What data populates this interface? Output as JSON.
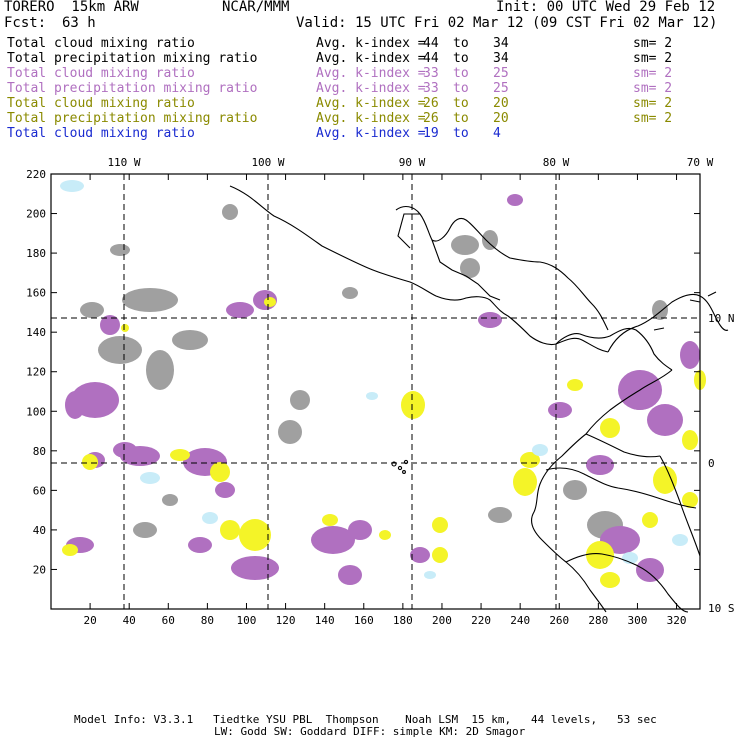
{
  "header": {
    "model": "TORERO  15km ARW",
    "org": "NCAR/MMM",
    "init": "Init: 00 UTC Wed 29 Feb 12",
    "fcst_label": "Fcst:",
    "fcst_value": "63 h",
    "valid": "Valid: 15 UTC Fri 02 Mar 12 (09 CST Fri 02 Mar 12)"
  },
  "legend": [
    {
      "field": "Total cloud mixing ratio",
      "stat": "Avg. k-index =",
      "lo": "44",
      "to": "to",
      "hi": "34",
      "sm": "sm= 2",
      "color": "#000000"
    },
    {
      "field": "Total precipitation mixing ratio",
      "stat": "Avg. k-index =",
      "lo": "44",
      "to": "to",
      "hi": "34",
      "sm": "sm= 2",
      "color": "#000000"
    },
    {
      "field": "Total cloud mixing ratio",
      "stat": "Avg. k-index =",
      "lo": "33",
      "to": "to",
      "hi": "25",
      "sm": "sm= 2",
      "color": "#b070c0"
    },
    {
      "field": "Total precipitation mixing ratio",
      "stat": "Avg. k-index =",
      "lo": "33",
      "to": "to",
      "hi": "25",
      "sm": "sm= 2",
      "color": "#b070c0"
    },
    {
      "field": "Total cloud mixing ratio",
      "stat": "Avg. k-index =",
      "lo": "26",
      "to": "to",
      "hi": "20",
      "sm": "sm= 2",
      "color": "#8a8a00"
    },
    {
      "field": "Total precipitation mixing ratio",
      "stat": "Avg. k-index =",
      "lo": "26",
      "to": "to",
      "hi": "20",
      "sm": "sm= 2",
      "color": "#8a8a00"
    },
    {
      "field": "Total cloud mixing ratio",
      "stat": "Avg. k-index =",
      "lo": "19",
      "to": "to",
      "hi": "4",
      "sm": "",
      "color": "#1a2ad0"
    }
  ],
  "map": {
    "lon_labels": [
      "110 W",
      "100 W",
      "90 W",
      "80 W",
      "70 W"
    ],
    "lat_labels": [
      "10 N",
      "0",
      "10 S"
    ],
    "y_ticks": [
      "20",
      "40",
      "60",
      "80",
      "100",
      "120",
      "140",
      "160",
      "180",
      "200",
      "220"
    ],
    "x_ticks": [
      "20",
      "40",
      "60",
      "80",
      "100",
      "120",
      "140",
      "160",
      "180",
      "200",
      "220",
      "240",
      "260",
      "280",
      "300",
      "320"
    ],
    "colors": {
      "gray": "#a0a0a0",
      "purple": "#b070c0",
      "yellow": "#f4f428",
      "lightblue": "#c8ecf8"
    }
  },
  "footer": {
    "line1": "Model Info: V3.3.1   Tiedtke YSU PBL  Thompson    Noah LSM  15 km,   44 levels,   53 sec",
    "line2": "LW: Godd SW: Goddard DIFF: simple KM: 2D Smagor"
  }
}
